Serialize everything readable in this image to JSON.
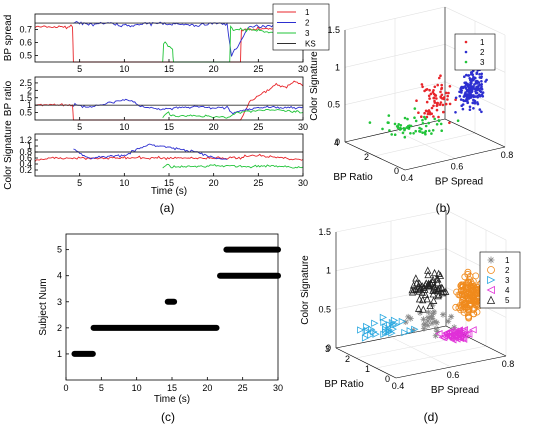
{
  "colors": {
    "s1": "#e8262b",
    "s2": "#2d2fd0",
    "s3": "#22c43a",
    "ks": "#303030",
    "g1": "#888888",
    "g2": "#f08a1c",
    "g3": "#2aa8e0",
    "g4": "#e030d8",
    "g5": "#222222"
  },
  "panels": {
    "a": {
      "caption": "(a)"
    },
    "b": {
      "caption": "(b)"
    },
    "c": {
      "caption": "(c)"
    },
    "d": {
      "caption": "(d)"
    }
  },
  "chart_data": [
    {
      "panel": "a",
      "type": "line",
      "xlabel": "Time (s)",
      "xlim": [
        0,
        30
      ],
      "xticks": [
        5,
        10,
        15,
        20,
        25,
        30
      ],
      "legend": [
        "1",
        "2",
        "3",
        "KS"
      ],
      "subplots": [
        {
          "ylabel": "BP spread",
          "ylim": [
            0.45,
            0.82
          ],
          "yticks": [
            0.5,
            0.6,
            0.7
          ],
          "ks": 0.75,
          "series": [
            {
              "name": "1",
              "x": [
                0,
                4.2,
                4.3,
                23,
                23.1,
                30
              ],
              "y": [
                0.72,
                0.72,
                0.45,
                0.45,
                0.7,
                0.71
              ]
            },
            {
              "name": "2",
              "x": [
                4.3,
                6,
                8,
                10,
                12,
                14,
                16,
                18,
                20,
                21.5,
                22,
                24,
                26,
                28,
                30
              ],
              "y": [
                0.75,
                0.74,
                0.75,
                0.73,
                0.74,
                0.75,
                0.74,
                0.73,
                0.75,
                0.74,
                0.5,
                0.72,
                0.73,
                0.74,
                0.72
              ]
            },
            {
              "name": "3",
              "x": [
                14.3,
                14.4,
                15.4,
                15.5,
                21.8,
                21.9,
                22.2,
                24,
                26,
                28,
                30
              ],
              "y": [
                0.45,
                0.6,
                0.55,
                0.45,
                0.45,
                0.72,
                0.7,
                0.7,
                0.68,
                0.69,
                0.67
              ]
            }
          ]
        },
        {
          "ylabel": "BP ratio",
          "ylim": [
            0,
            2.9
          ],
          "yticks": [
            0.5,
            1,
            1.5,
            2,
            2.5
          ],
          "ks": 1,
          "series": [
            {
              "name": "1",
              "x": [
                0,
                2,
                4.2,
                4.3,
                23,
                24,
                25,
                26,
                27,
                28,
                29,
                30
              ],
              "y": [
                1.0,
                1.05,
                0.95,
                0,
                0,
                1.2,
                1.6,
                2.0,
                2.4,
                2.2,
                2.6,
                2.3
              ]
            },
            {
              "name": "2",
              "x": [
                4.3,
                6,
                8,
                10,
                11,
                12,
                14,
                16,
                18,
                20,
                21.5,
                22,
                23,
                24,
                26,
                28,
                30
              ],
              "y": [
                1.0,
                0.9,
                1.1,
                1.4,
                1.2,
                0.9,
                0.7,
                0.8,
                0.9,
                0.8,
                0.85,
                0.5,
                0.6,
                0.7,
                0.9,
                0.8,
                0.9
              ]
            },
            {
              "name": "3",
              "x": [
                14.3,
                14.8,
                15.4,
                21.8,
                22.5,
                24,
                26,
                28,
                30
              ],
              "y": [
                0.2,
                0.5,
                0.3,
                0.2,
                0.5,
                0.6,
                0.7,
                0.6,
                0.5
              ]
            }
          ]
        },
        {
          "ylabel": "Color Signature",
          "ylim": [
            0,
            1.4
          ],
          "yticks": [
            0.2,
            0.4,
            0.6,
            0.8,
            1,
            1.2
          ],
          "ks": 0.8,
          "series": [
            {
              "name": "1",
              "x": [
                0,
                2,
                4.2,
                23,
                24,
                26,
                28,
                30
              ],
              "y": [
                0.5,
                0.6,
                0.6,
                0.6,
                0.7,
                0.65,
                0.6,
                0.55
              ]
            },
            {
              "name": "2",
              "x": [
                4.3,
                5,
                6,
                8,
                10,
                12,
                13,
                14,
                16,
                18,
                20,
                21.5
              ],
              "y": [
                0.9,
                0.75,
                0.6,
                0.65,
                0.7,
                0.95,
                1.05,
                1.0,
                0.9,
                0.8,
                0.6,
                0.55
              ]
            },
            {
              "name": "3",
              "x": [
                14.3,
                14.8,
                15.4,
                21.8,
                24,
                26,
                28,
                30
              ],
              "y": [
                0.25,
                0.4,
                0.3,
                0.35,
                0.3,
                0.35,
                0.3,
                0.3
              ]
            }
          ]
        }
      ]
    },
    {
      "panel": "b",
      "type": "scatter",
      "xlabel": "BP Spread",
      "ylabel": "BP Ratio",
      "zlabel": "Color Signature",
      "xlim": [
        0.4,
        0.8
      ],
      "ylim": [
        0,
        4
      ],
      "zlim": [
        0,
        1.5
      ],
      "xticks": [
        0.4,
        0.6,
        0.8
      ],
      "yticks": [
        0,
        2,
        4
      ],
      "zticks": [
        0,
        0.5,
        1,
        1.5
      ],
      "legend": [
        "1",
        "2",
        "3"
      ],
      "clusters": [
        {
          "name": "1",
          "center": [
            0.6,
            1.2,
            0.65
          ],
          "spread": [
            0.06,
            0.8,
            0.25
          ],
          "count": 70
        },
        {
          "name": "2",
          "center": [
            0.72,
            0.9,
            0.75
          ],
          "spread": [
            0.04,
            0.4,
            0.25
          ],
          "count": 170
        },
        {
          "name": "3",
          "center": [
            0.55,
            1.8,
            0.3
          ],
          "spread": [
            0.12,
            1.2,
            0.08
          ],
          "count": 60
        }
      ]
    },
    {
      "panel": "c",
      "type": "scatter",
      "xlabel": "Time (s)",
      "ylabel": "Subject Num",
      "xlim": [
        0,
        30
      ],
      "ylim": [
        0,
        5.6
      ],
      "xticks": [
        0,
        5,
        10,
        15,
        20,
        25,
        30
      ],
      "yticks": [
        1,
        2,
        3,
        4,
        5
      ],
      "segments": [
        {
          "subject": 1,
          "x": [
            1.2,
            3.8
          ]
        },
        {
          "subject": 2,
          "x": [
            3.9,
            21.3
          ]
        },
        {
          "subject": 3,
          "x": [
            14.4,
            15.3
          ]
        },
        {
          "subject": 4,
          "x": [
            21.8,
            30
          ]
        },
        {
          "subject": 5,
          "x": [
            22.7,
            30
          ]
        }
      ]
    },
    {
      "panel": "d",
      "type": "scatter",
      "xlabel": "BP Spread",
      "ylabel": "BP Ratio",
      "zlabel": "Color Signature",
      "xlim": [
        0.4,
        0.8
      ],
      "ylim": [
        0,
        3
      ],
      "zlim": [
        0,
        1.5
      ],
      "xticks": [
        0.4,
        0.6,
        0.8
      ],
      "yticks": [
        0,
        1,
        2,
        3
      ],
      "zticks": [
        0,
        0.5,
        1,
        1.5
      ],
      "legend": [
        "1",
        "2",
        "3",
        "4",
        "5"
      ],
      "clusters": [
        {
          "name": "1",
          "marker": "star",
          "center": [
            0.6,
            1.0,
            0.45
          ],
          "spread": [
            0.06,
            0.5,
            0.15
          ],
          "count": 30
        },
        {
          "name": "2",
          "marker": "circle",
          "center": [
            0.72,
            0.7,
            0.75
          ],
          "spread": [
            0.04,
            0.3,
            0.25
          ],
          "count": 150
        },
        {
          "name": "3",
          "marker": "triangle-right",
          "center": [
            0.5,
            2.0,
            0.3
          ],
          "spread": [
            0.08,
            0.6,
            0.08
          ],
          "count": 30
        },
        {
          "name": "4",
          "marker": "triangle-left",
          "center": [
            0.66,
            0.6,
            0.3
          ],
          "spread": [
            0.04,
            0.3,
            0.06
          ],
          "count": 45
        },
        {
          "name": "5",
          "marker": "triangle-up",
          "center": [
            0.58,
            0.9,
            0.95
          ],
          "spread": [
            0.06,
            0.4,
            0.2
          ],
          "count": 60
        }
      ]
    }
  ]
}
